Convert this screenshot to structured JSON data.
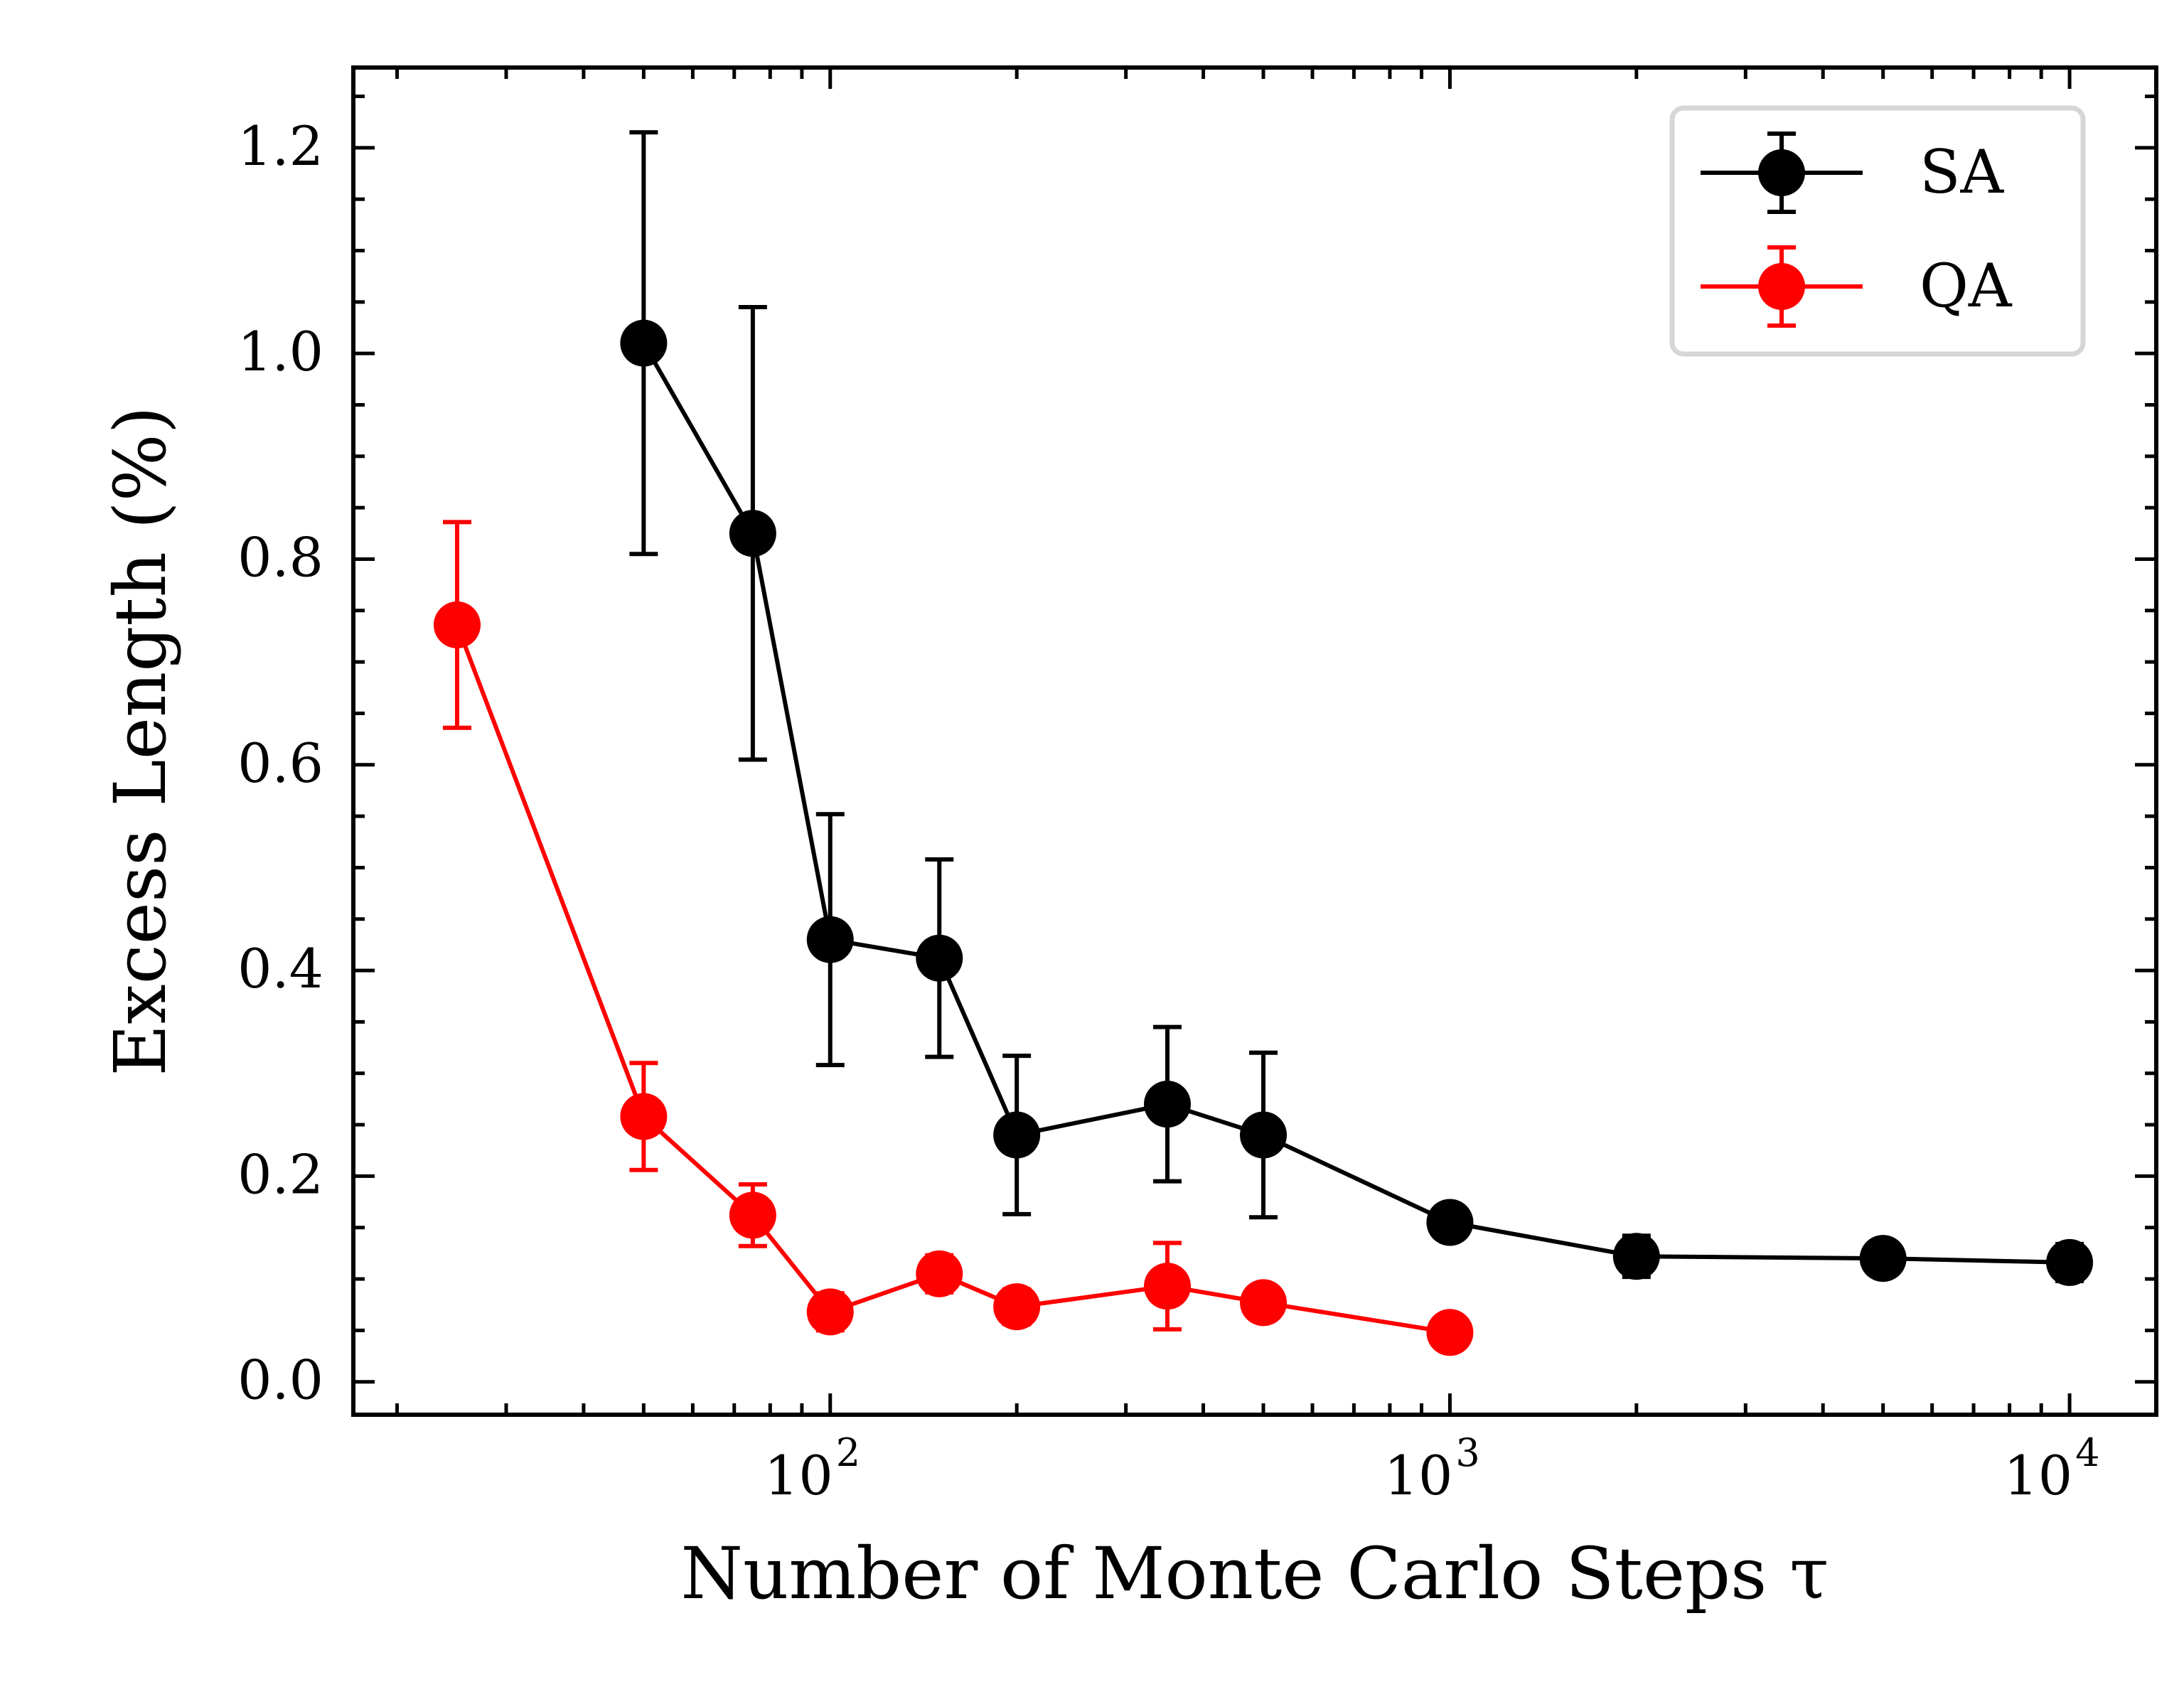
{
  "chart_data": {
    "type": "line",
    "title": "",
    "xlabel": "Number of Monte Carlo Steps τ",
    "ylabel": "Excess Length (%)",
    "xscale": "log",
    "xlim": [
      17,
      13800
    ],
    "ylim": [
      -0.032,
      1.278
    ],
    "x_ticks": [
      {
        "value": 100,
        "base": "10",
        "exp": "2"
      },
      {
        "value": 1000,
        "base": "10",
        "exp": "3"
      },
      {
        "value": 10000,
        "base": "10",
        "exp": "4"
      }
    ],
    "y_ticks": [
      {
        "value": 0.0,
        "label": "0.0"
      },
      {
        "value": 0.2,
        "label": "0.2"
      },
      {
        "value": 0.4,
        "label": "0.4"
      },
      {
        "value": 0.6,
        "label": "0.6"
      },
      {
        "value": 0.8,
        "label": "0.8"
      },
      {
        "value": 1.0,
        "label": "1.0"
      },
      {
        "value": 1.2,
        "label": "1.2"
      }
    ],
    "grid": false,
    "legend_position": "top-right",
    "series": [
      {
        "name": "SA",
        "color": "#000000",
        "x": [
          50,
          75,
          100,
          150,
          200,
          350,
          500,
          1000,
          2000,
          5000,
          10000
        ],
        "y": [
          1.01,
          0.825,
          0.43,
          0.412,
          0.24,
          0.27,
          0.24,
          0.155,
          0.122,
          0.12,
          0.116
        ],
        "yerr": [
          0.205,
          0.22,
          0.122,
          0.096,
          0.077,
          0.075,
          0.08,
          0.015,
          0.02,
          0.016,
          0.018
        ]
      },
      {
        "name": "QA",
        "color": "#ff0000",
        "x": [
          25,
          50,
          75,
          100,
          150,
          200,
          350,
          500,
          1000
        ],
        "y": [
          0.736,
          0.258,
          0.162,
          0.068,
          0.105,
          0.073,
          0.093,
          0.077,
          0.048
        ],
        "yerr": [
          0.1,
          0.052,
          0.03,
          0.018,
          0.018,
          0.017,
          0.042,
          0.015,
          0.014
        ]
      }
    ]
  }
}
